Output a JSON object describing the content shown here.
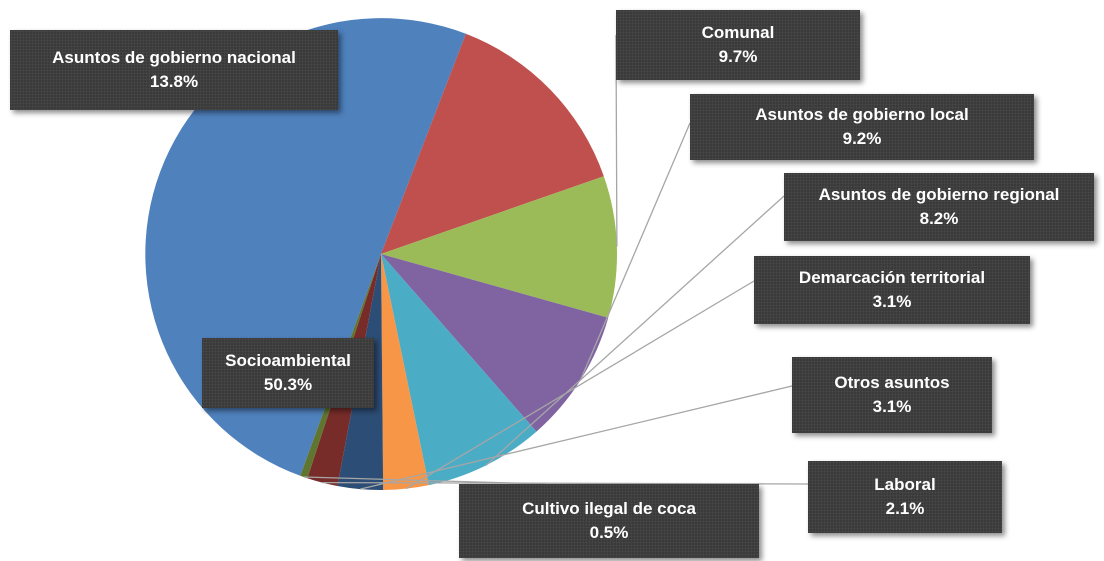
{
  "chart_data": {
    "type": "pie",
    "title": "",
    "series": [
      {
        "name": "Socioambiental",
        "value": 50.3,
        "label": "50.3%",
        "color": "#4f81bd"
      },
      {
        "name": "Asuntos de gobierno nacional",
        "value": 13.8,
        "label": "13.8%",
        "color": "#c0504d"
      },
      {
        "name": "Comunal",
        "value": 9.7,
        "label": "9.7%",
        "color": "#9bbb59"
      },
      {
        "name": "Asuntos de gobierno local",
        "value": 9.2,
        "label": "9.2%",
        "color": "#8064a2"
      },
      {
        "name": "Asuntos de gobierno regional",
        "value": 8.2,
        "label": "8.2%",
        "color": "#4bacc6"
      },
      {
        "name": "Demarcación territorial",
        "value": 3.1,
        "label": "3.1%",
        "color": "#f79646"
      },
      {
        "name": "Otros asuntos",
        "value": 3.1,
        "label": "3.1%",
        "color": "#2c4d75"
      },
      {
        "name": "Laboral",
        "value": 2.1,
        "label": "2.1%",
        "color": "#772c2a"
      },
      {
        "name": "Cultivo ilegal de coca",
        "value": 0.5,
        "label": "0.5%",
        "color": "#5f7530"
      }
    ]
  }
}
